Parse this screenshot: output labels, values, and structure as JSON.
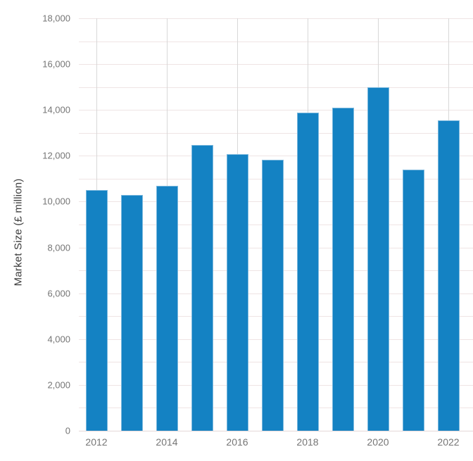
{
  "chart_data": {
    "type": "bar",
    "title": "",
    "ylabel": "Market Size (£ million)",
    "xlabel": "",
    "categories": [
      "2012",
      "2013",
      "2014",
      "2015",
      "2016",
      "2017",
      "2018",
      "2019",
      "2020",
      "2021",
      "2022"
    ],
    "values": [
      10520,
      10300,
      10700,
      12480,
      12070,
      11830,
      13870,
      14110,
      15000,
      11400,
      13540
    ],
    "series_name": "Market Size (£ million)",
    "ylim": [
      0,
      18000
    ],
    "y_label_step": 2000,
    "y_grid_step": 1000,
    "y_tick_labels": [
      "0",
      "2,000",
      "4,000",
      "6,000",
      "8,000",
      "10,000",
      "12,000",
      "14,000",
      "16,000",
      "18,000"
    ],
    "x_tick_labels": [
      "2012",
      "2014",
      "2016",
      "2018",
      "2020",
      "2022"
    ],
    "grid": true,
    "legend": "none",
    "colors": {
      "bar": "#1482c3",
      "bar_edge": "#7db9de",
      "h_gridline": "#efe4e4",
      "baseline": "#e4d8d8",
      "v_gridline": "#d8d8d8",
      "tick_label": "#757575",
      "axis_title": "#3c3c3c",
      "background": "#ffffff"
    }
  }
}
